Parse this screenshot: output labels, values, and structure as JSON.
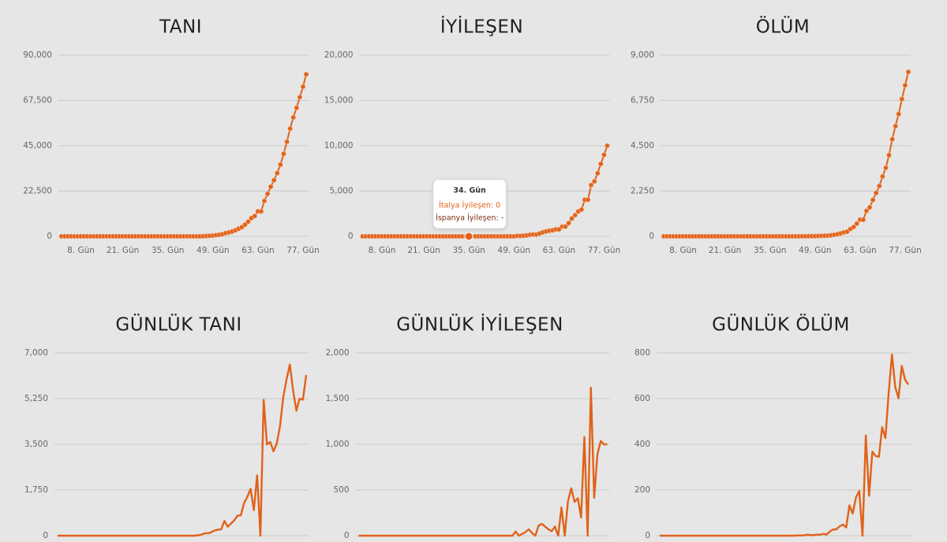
{
  "chart_data": [
    {
      "type": "line",
      "title": "TANI",
      "color": "#e0621a",
      "markers": true,
      "x": [
        1,
        2,
        3,
        4,
        5,
        6,
        7,
        8,
        9,
        10,
        11,
        12,
        13,
        14,
        15,
        16,
        17,
        18,
        19,
        20,
        21,
        22,
        23,
        24,
        25,
        26,
        27,
        28,
        29,
        30,
        31,
        32,
        33,
        34,
        35,
        36,
        37,
        38,
        39,
        40,
        41,
        42,
        43,
        44,
        45,
        46,
        47,
        48,
        49,
        50,
        51,
        52,
        53,
        54,
        55,
        56,
        57,
        58,
        59,
        60,
        61,
        62,
        63,
        64,
        65,
        66,
        67,
        68,
        69,
        70,
        71,
        72,
        73,
        74,
        75,
        76,
        77
      ],
      "values": [
        0,
        0,
        0,
        0,
        0,
        0,
        0,
        0,
        0,
        0,
        0,
        0,
        0,
        0,
        0,
        0,
        0,
        0,
        0,
        0,
        0,
        3,
        3,
        3,
        3,
        3,
        3,
        3,
        3,
        3,
        3,
        3,
        3,
        3,
        3,
        3,
        3,
        3,
        3,
        3,
        3,
        3,
        3,
        20,
        62,
        155,
        248,
        379,
        581,
        814,
        1054,
        1620,
        1962,
        2428,
        3015,
        3784,
        4562,
        5809,
        7301,
        9098,
        10075,
        12388,
        12388,
        17586,
        21083,
        24673,
        27906,
        31432,
        35639,
        40961,
        46947,
        53504,
        59064,
        63853,
        69102,
        74312,
        80465
      ],
      "xlim": [
        1,
        77
      ],
      "xticks": [
        {
          "value": 8,
          "label": "8. Gün"
        },
        {
          "value": 21,
          "label": "21. Gün"
        },
        {
          "value": 35,
          "label": "35. Gün"
        },
        {
          "value": 49,
          "label": "49. Gün"
        },
        {
          "value": 63,
          "label": "63. Gün"
        },
        {
          "value": 77,
          "label": "77. Gün"
        }
      ],
      "ylim": [
        0,
        90000
      ],
      "yticks": [
        0,
        {
          "value": 22500,
          "label": "22,500"
        },
        {
          "value": 45000,
          "label": "45,000"
        },
        {
          "value": 67500,
          "label": "67,500"
        },
        {
          "value": 90000,
          "label": "90,000"
        }
      ],
      "grid": true
    },
    {
      "type": "line",
      "title": "İYİLEŞEN",
      "color": "#e0621a",
      "markers": true,
      "x": [
        1,
        2,
        3,
        4,
        5,
        6,
        7,
        8,
        9,
        10,
        11,
        12,
        13,
        14,
        15,
        16,
        17,
        18,
        19,
        20,
        21,
        22,
        23,
        24,
        25,
        26,
        27,
        28,
        29,
        30,
        31,
        32,
        33,
        34,
        35,
        36,
        37,
        38,
        39,
        40,
        41,
        42,
        43,
        44,
        45,
        46,
        47,
        48,
        49,
        50,
        51,
        52,
        53,
        54,
        55,
        56,
        57,
        58,
        59,
        60,
        61,
        62,
        63,
        64,
        65,
        66,
        67,
        68,
        69,
        70,
        71,
        72,
        73,
        74,
        75,
        76,
        77
      ],
      "values": [
        0,
        0,
        0,
        0,
        0,
        0,
        0,
        0,
        0,
        0,
        0,
        0,
        0,
        0,
        0,
        0,
        0,
        0,
        0,
        0,
        0,
        0,
        0,
        0,
        0,
        0,
        0,
        0,
        0,
        0,
        0,
        0,
        0,
        0,
        0,
        0,
        0,
        0,
        0,
        0,
        0,
        0,
        0,
        0,
        0,
        0,
        0,
        0,
        45,
        45,
        65,
        105,
        175,
        205,
        205,
        315,
        445,
        545,
        615,
        665,
        765,
        765,
        1075,
        1075,
        1455,
        1975,
        2345,
        2755,
        2955,
        4035,
        4035,
        5655,
        6070,
        6964,
        8000,
        8999,
        9999
      ],
      "xlim": [
        1,
        77
      ],
      "xticks": [
        {
          "value": 8,
          "label": "8. Gün"
        },
        {
          "value": 21,
          "label": "21. Gün"
        },
        {
          "value": 35,
          "label": "35. Gün"
        },
        {
          "value": 49,
          "label": "49. Gün"
        },
        {
          "value": 63,
          "label": "63. Gün"
        },
        {
          "value": 77,
          "label": "77. Gün"
        }
      ],
      "ylim": [
        0,
        20000
      ],
      "yticks": [
        0,
        {
          "value": 5000,
          "label": "5,000"
        },
        {
          "value": 10000,
          "label": "10,000"
        },
        {
          "value": 15000,
          "label": "15,000"
        },
        {
          "value": 20000,
          "label": "20,000"
        }
      ],
      "grid": true,
      "tooltip": {
        "x": {
          "value": 34,
          "label": "34. Gün"
        },
        "items": [
          {
            "label": "İtalya İyileşen: 0",
            "color": "#e0621a"
          },
          {
            "label": "İspanya İyileşen: -",
            "color": "#7a2e12"
          }
        ]
      }
    },
    {
      "type": "line",
      "title": "ÖLÜM",
      "color": "#e0621a",
      "markers": true,
      "x": [
        1,
        2,
        3,
        4,
        5,
        6,
        7,
        8,
        9,
        10,
        11,
        12,
        13,
        14,
        15,
        16,
        17,
        18,
        19,
        20,
        21,
        22,
        23,
        24,
        25,
        26,
        27,
        28,
        29,
        30,
        31,
        32,
        33,
        34,
        35,
        36,
        37,
        38,
        39,
        40,
        41,
        42,
        43,
        44,
        45,
        46,
        47,
        48,
        49,
        50,
        51,
        52,
        53,
        54,
        55,
        56,
        57,
        58,
        59,
        60,
        61,
        62,
        63,
        64,
        65,
        66,
        67,
        68,
        69,
        70,
        71,
        72,
        73,
        74,
        75,
        76,
        77
      ],
      "values": [
        0,
        0,
        0,
        0,
        0,
        0,
        0,
        0,
        0,
        0,
        0,
        0,
        0,
        0,
        0,
        0,
        0,
        0,
        0,
        0,
        0,
        0,
        0,
        0,
        0,
        0,
        0,
        0,
        0,
        0,
        0,
        0,
        0,
        0,
        0,
        0,
        0,
        0,
        0,
        0,
        0,
        0,
        1,
        2,
        3,
        7,
        10,
        12,
        17,
        21,
        29,
        34,
        52,
        79,
        107,
        148,
        197,
        233,
        366,
        463,
        631,
        827,
        827,
        1266,
        1441,
        1809,
        2158,
        2503,
        2978,
        3405,
        4032,
        4825,
        5476,
        6077,
        6820,
        7503,
        8165
      ],
      "xlim": [
        1,
        77
      ],
      "xticks": [
        {
          "value": 8,
          "label": "8. Gün"
        },
        {
          "value": 21,
          "label": "21. Gün"
        },
        {
          "value": 35,
          "label": "35. Gün"
        },
        {
          "value": 49,
          "label": "49. Gün"
        },
        {
          "value": 63,
          "label": "63. Gün"
        },
        {
          "value": 77,
          "label": "77. Gün"
        }
      ],
      "ylim": [
        0,
        9000
      ],
      "yticks": [
        0,
        {
          "value": 2250,
          "label": "2,250"
        },
        {
          "value": 4500,
          "label": "4,500"
        },
        {
          "value": 6750,
          "label": "6,750"
        },
        {
          "value": 9000,
          "label": "9,000"
        }
      ],
      "grid": true
    },
    {
      "type": "line",
      "title": "GÜNLÜK TANI",
      "color": "#e0621a",
      "markers": false,
      "x": [
        1,
        2,
        3,
        4,
        5,
        6,
        7,
        8,
        9,
        10,
        11,
        12,
        13,
        14,
        15,
        16,
        17,
        18,
        19,
        20,
        21,
        22,
        23,
        24,
        25,
        26,
        27,
        28,
        29,
        30,
        31,
        32,
        33,
        34,
        35,
        36,
        37,
        38,
        39,
        40,
        41,
        42,
        43,
        44,
        45,
        46,
        47,
        48,
        49,
        50,
        51,
        52,
        53,
        54,
        55,
        56,
        57,
        58,
        59,
        60,
        61,
        62,
        63,
        64,
        65,
        66,
        67,
        68,
        69,
        70,
        71,
        72,
        73,
        74,
        75,
        76,
        77
      ],
      "values": [
        0,
        0,
        0,
        0,
        0,
        0,
        0,
        0,
        0,
        0,
        0,
        0,
        0,
        0,
        0,
        0,
        0,
        0,
        0,
        0,
        0,
        3,
        0,
        0,
        0,
        0,
        0,
        0,
        0,
        0,
        0,
        0,
        0,
        0,
        0,
        0,
        0,
        0,
        0,
        0,
        0,
        0,
        0,
        17,
        42,
        93,
        93,
        131,
        202,
        233,
        240,
        566,
        342,
        466,
        587,
        769,
        778,
        1247,
        1492,
        1797,
        977,
        2313,
        0,
        5198,
        3497,
        3590,
        3233,
        3526,
        4207,
        5322,
        5986,
        6557,
        5560,
        4789,
        5249,
        5210,
        6153
      ],
      "xlim": [
        1,
        77
      ],
      "ylim": [
        0,
        7000
      ],
      "yticks": [
        0,
        {
          "value": 1750,
          "label": "1,750"
        },
        {
          "value": 3500,
          "label": "3,500"
        },
        {
          "value": 5250,
          "label": "5,250"
        },
        {
          "value": 7000,
          "label": "7,000"
        }
      ],
      "grid": true
    },
    {
      "type": "line",
      "title": "GÜNLÜK İYİLEŞEN",
      "color": "#e0621a",
      "markers": false,
      "x": [
        1,
        2,
        3,
        4,
        5,
        6,
        7,
        8,
        9,
        10,
        11,
        12,
        13,
        14,
        15,
        16,
        17,
        18,
        19,
        20,
        21,
        22,
        23,
        24,
        25,
        26,
        27,
        28,
        29,
        30,
        31,
        32,
        33,
        34,
        35,
        36,
        37,
        38,
        39,
        40,
        41,
        42,
        43,
        44,
        45,
        46,
        47,
        48,
        49,
        50,
        51,
        52,
        53,
        54,
        55,
        56,
        57,
        58,
        59,
        60,
        61,
        62,
        63,
        64,
        65,
        66,
        67,
        68,
        69,
        70,
        71,
        72,
        73,
        74,
        75,
        76,
        77
      ],
      "values": [
        0,
        0,
        0,
        0,
        0,
        0,
        0,
        0,
        0,
        0,
        0,
        0,
        0,
        0,
        0,
        0,
        0,
        0,
        0,
        0,
        0,
        0,
        0,
        0,
        0,
        0,
        0,
        0,
        0,
        0,
        0,
        0,
        0,
        0,
        0,
        0,
        0,
        0,
        0,
        0,
        0,
        0,
        0,
        0,
        0,
        0,
        0,
        0,
        45,
        0,
        20,
        40,
        70,
        30,
        0,
        110,
        130,
        100,
        70,
        50,
        100,
        0,
        310,
        0,
        380,
        520,
        370,
        410,
        200,
        1080,
        0,
        1620,
        415,
        894,
        1036,
        999,
        1000
      ],
      "xlim": [
        1,
        77
      ],
      "ylim": [
        0,
        2000
      ],
      "yticks": [
        0,
        500,
        {
          "value": 1000,
          "label": "1,000"
        },
        {
          "value": 1500,
          "label": "1,500"
        },
        {
          "value": 2000,
          "label": "2,000"
        }
      ],
      "grid": true
    },
    {
      "type": "line",
      "title": "GÜNLÜK ÖLÜM",
      "color": "#e0621a",
      "markers": false,
      "x": [
        1,
        2,
        3,
        4,
        5,
        6,
        7,
        8,
        9,
        10,
        11,
        12,
        13,
        14,
        15,
        16,
        17,
        18,
        19,
        20,
        21,
        22,
        23,
        24,
        25,
        26,
        27,
        28,
        29,
        30,
        31,
        32,
        33,
        34,
        35,
        36,
        37,
        38,
        39,
        40,
        41,
        42,
        43,
        44,
        45,
        46,
        47,
        48,
        49,
        50,
        51,
        52,
        53,
        54,
        55,
        56,
        57,
        58,
        59,
        60,
        61,
        62,
        63,
        64,
        65,
        66,
        67,
        68,
        69,
        70,
        71,
        72,
        73,
        74,
        75,
        76,
        77
      ],
      "values": [
        0,
        0,
        0,
        0,
        0,
        0,
        0,
        0,
        0,
        0,
        0,
        0,
        0,
        0,
        0,
        0,
        0,
        0,
        0,
        0,
        0,
        0,
        0,
        0,
        0,
        0,
        0,
        0,
        0,
        0,
        0,
        0,
        0,
        0,
        0,
        0,
        0,
        0,
        0,
        0,
        0,
        0,
        1,
        1,
        1,
        4,
        3,
        2,
        5,
        4,
        8,
        5,
        18,
        27,
        28,
        41,
        49,
        36,
        133,
        97,
        168,
        196,
        0,
        439,
        175,
        368,
        349,
        345,
        475,
        427,
        627,
        793,
        651,
        601,
        743,
        683,
        662
      ],
      "xlim": [
        1,
        77
      ],
      "ylim": [
        0,
        800
      ],
      "yticks": [
        0,
        200,
        400,
        600,
        800
      ],
      "grid": true
    }
  ]
}
